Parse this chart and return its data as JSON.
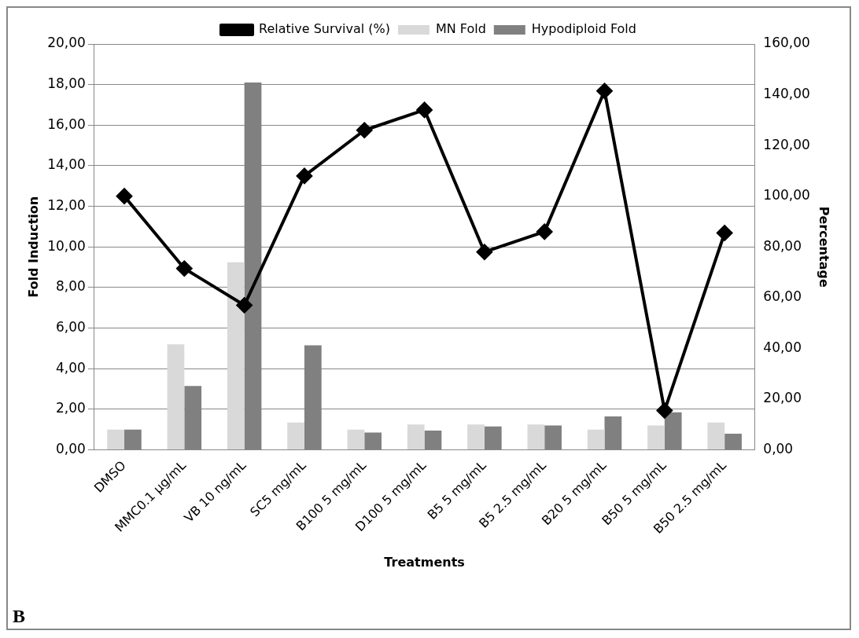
{
  "chart_data": {
    "type": "bar",
    "xlabel": "Treatments",
    "ylabel": "Fold Induction",
    "y2label": "Percentage",
    "categories": [
      "DMSO",
      "MMC0.1 µg/mL",
      "VB 10 ng/mL",
      "SC5 mg/mL",
      "B100 5 mg/mL",
      "D100 5 mg/mL",
      "B5 5 mg/mL",
      "B5 2.5 mg/mL",
      "B20 5 mg/mL",
      "B50 5 mg/mL",
      "B50 2.5 mg/mL"
    ],
    "series": [
      {
        "name": "MN Fold",
        "color": "#d9d9d9",
        "values": [
          1.0,
          5.2,
          9.25,
          1.35,
          1.0,
          1.25,
          1.25,
          1.25,
          1.0,
          1.2,
          1.35
        ]
      },
      {
        "name": "Hypodiploid Fold",
        "color": "#808080",
        "values": [
          1.0,
          3.15,
          18.1,
          5.15,
          0.85,
          0.95,
          1.15,
          1.2,
          1.65,
          1.85,
          0.8
        ]
      },
      {
        "name": "Relative Survival (%)",
        "type": "line",
        "axis": "y2",
        "color": "#000000",
        "marker": "diamond",
        "values": [
          100,
          71.5,
          57,
          108,
          126,
          134,
          78,
          86,
          141.5,
          15.5,
          85.5
        ]
      }
    ],
    "ylim": [
      0,
      20
    ],
    "yticks": [
      {
        "value": 0,
        "label": "0,00"
      },
      {
        "value": 2,
        "label": "2,00"
      },
      {
        "value": 4,
        "label": "4,00"
      },
      {
        "value": 6,
        "label": "6,00"
      },
      {
        "value": 8,
        "label": "8,00"
      },
      {
        "value": 10,
        "label": "10,00"
      },
      {
        "value": 12,
        "label": "12,00"
      },
      {
        "value": 14,
        "label": "14,00"
      },
      {
        "value": 16,
        "label": "16,00"
      },
      {
        "value": 18,
        "label": "18,00"
      },
      {
        "value": 20,
        "label": "20,00"
      }
    ],
    "y2lim": [
      0,
      160
    ],
    "y2ticks": [
      {
        "value": 0,
        "label": "0,00"
      },
      {
        "value": 20,
        "label": "20,00"
      },
      {
        "value": 40,
        "label": "40,00"
      },
      {
        "value": 60,
        "label": "60,00"
      },
      {
        "value": 80,
        "label": "80,00"
      },
      {
        "value": 100,
        "label": "100,00"
      },
      {
        "value": 120,
        "label": "120,00"
      },
      {
        "value": 140,
        "label": "140,00"
      },
      {
        "value": 160,
        "label": "160,00"
      }
    ],
    "grid": "y",
    "legend": "top",
    "annotations": [
      "B"
    ]
  }
}
